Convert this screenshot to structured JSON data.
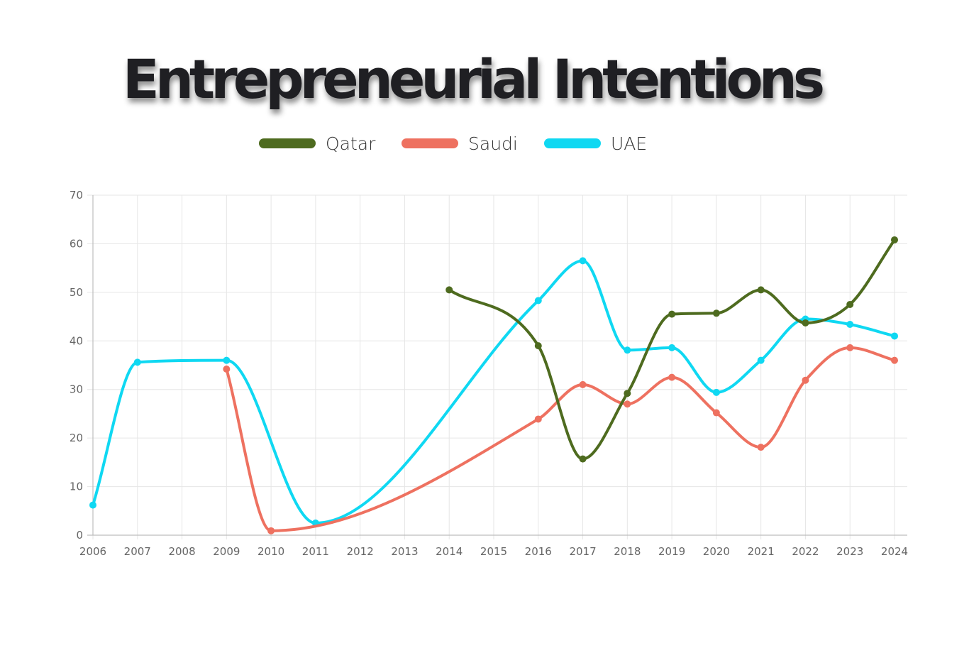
{
  "chart_data": {
    "type": "line",
    "title": "Entrepreneurial Intentions",
    "xlabel": "",
    "ylabel": "",
    "ylim": [
      0,
      70
    ],
    "yticks": [
      0,
      10,
      20,
      30,
      40,
      50,
      60,
      70
    ],
    "categories": [
      "2006",
      "2007",
      "2008",
      "2009",
      "2010",
      "2011",
      "2012",
      "2013",
      "2014",
      "2015",
      "2016",
      "2017",
      "2018",
      "2019",
      "2020",
      "2021",
      "2022",
      "2023",
      "2024"
    ],
    "grid": true,
    "legend_position": "top",
    "series": [
      {
        "name": "Qatar",
        "color": "#4e6b1f",
        "points": [
          {
            "x": "2014",
            "y": 50.5
          },
          {
            "x": "2016",
            "y": 39
          },
          {
            "x": "2017",
            "y": 15.7
          },
          {
            "x": "2018",
            "y": 29.2
          },
          {
            "x": "2019",
            "y": 45.5
          },
          {
            "x": "2020",
            "y": 45.7
          },
          {
            "x": "2021",
            "y": 50.5
          },
          {
            "x": "2022",
            "y": 43.7
          },
          {
            "x": "2023",
            "y": 47.5
          },
          {
            "x": "2024",
            "y": 60.8
          }
        ]
      },
      {
        "name": "Saudi",
        "color": "#ee7160",
        "points": [
          {
            "x": "2009",
            "y": 34.2
          },
          {
            "x": "2010",
            "y": 0.9
          },
          {
            "x": "2016",
            "y": 23.9
          },
          {
            "x": "2017",
            "y": 31
          },
          {
            "x": "2018",
            "y": 27
          },
          {
            "x": "2019",
            "y": 32.5
          },
          {
            "x": "2020",
            "y": 25.2
          },
          {
            "x": "2021",
            "y": 18.1
          },
          {
            "x": "2022",
            "y": 31.9
          },
          {
            "x": "2023",
            "y": 38.6
          },
          {
            "x": "2024",
            "y": 36
          }
        ]
      },
      {
        "name": "UAE",
        "color": "#0fd8f2",
        "points": [
          {
            "x": "2006",
            "y": 6.2
          },
          {
            "x": "2007",
            "y": 35.6
          },
          {
            "x": "2009",
            "y": 36
          },
          {
            "x": "2011",
            "y": 2.5
          },
          {
            "x": "2016",
            "y": 48.3
          },
          {
            "x": "2017",
            "y": 56.5
          },
          {
            "x": "2018",
            "y": 38.1
          },
          {
            "x": "2019",
            "y": 38.6
          },
          {
            "x": "2020",
            "y": 29.4
          },
          {
            "x": "2021",
            "y": 36
          },
          {
            "x": "2022",
            "y": 44.5
          },
          {
            "x": "2023",
            "y": 43.4
          },
          {
            "x": "2024",
            "y": 41
          }
        ]
      }
    ]
  }
}
